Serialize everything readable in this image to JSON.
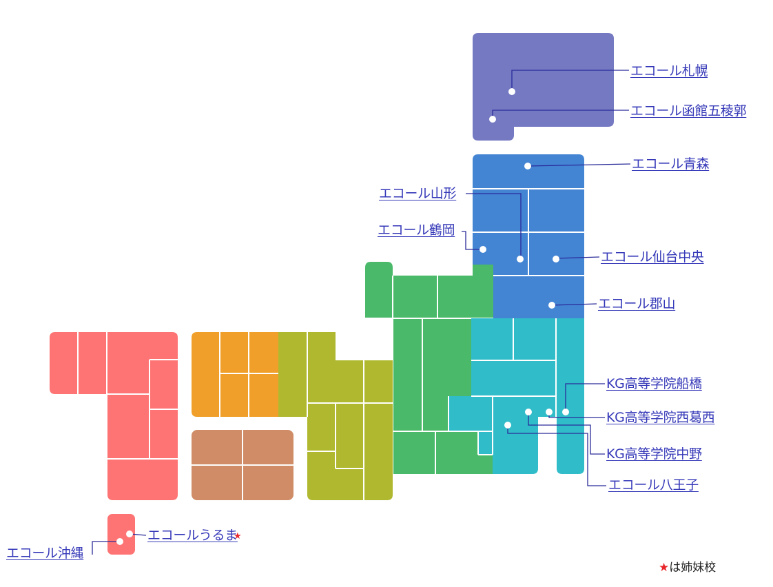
{
  "colors": {
    "hokkaido": "#7479c2",
    "tohoku": "#4384d3",
    "chubu": "#4bb96a",
    "kanto": "#30bcc9",
    "kinki": "#b0b82f",
    "chugoku": "#f0a02a",
    "shikoku": "#cf8c66",
    "kyushu": "#fe7474",
    "leader": "#2b2b9a",
    "link": "#3538b8",
    "sister_star": "#e8262a"
  },
  "schools": {
    "sapporo": "エコール札幌",
    "hakodate": "エコール函館五稜郭",
    "aomori": "エコール青森",
    "yamagata": "エコール山形",
    "tsuruoka": "エコール鶴岡",
    "sendai": "エコール仙台中央",
    "koriyama": "エコール郡山",
    "funabashi": "KG高等学院船橋",
    "nishikasai": "KG高等学院西葛西",
    "nakano": "KG高等学院中野",
    "hachioji": "エコール八王子",
    "uruma": "エコールうるま",
    "okinawa": "エコール沖縄"
  },
  "sister_marker": "★",
  "legend": {
    "star": "★",
    "text": "は姉妹校"
  }
}
